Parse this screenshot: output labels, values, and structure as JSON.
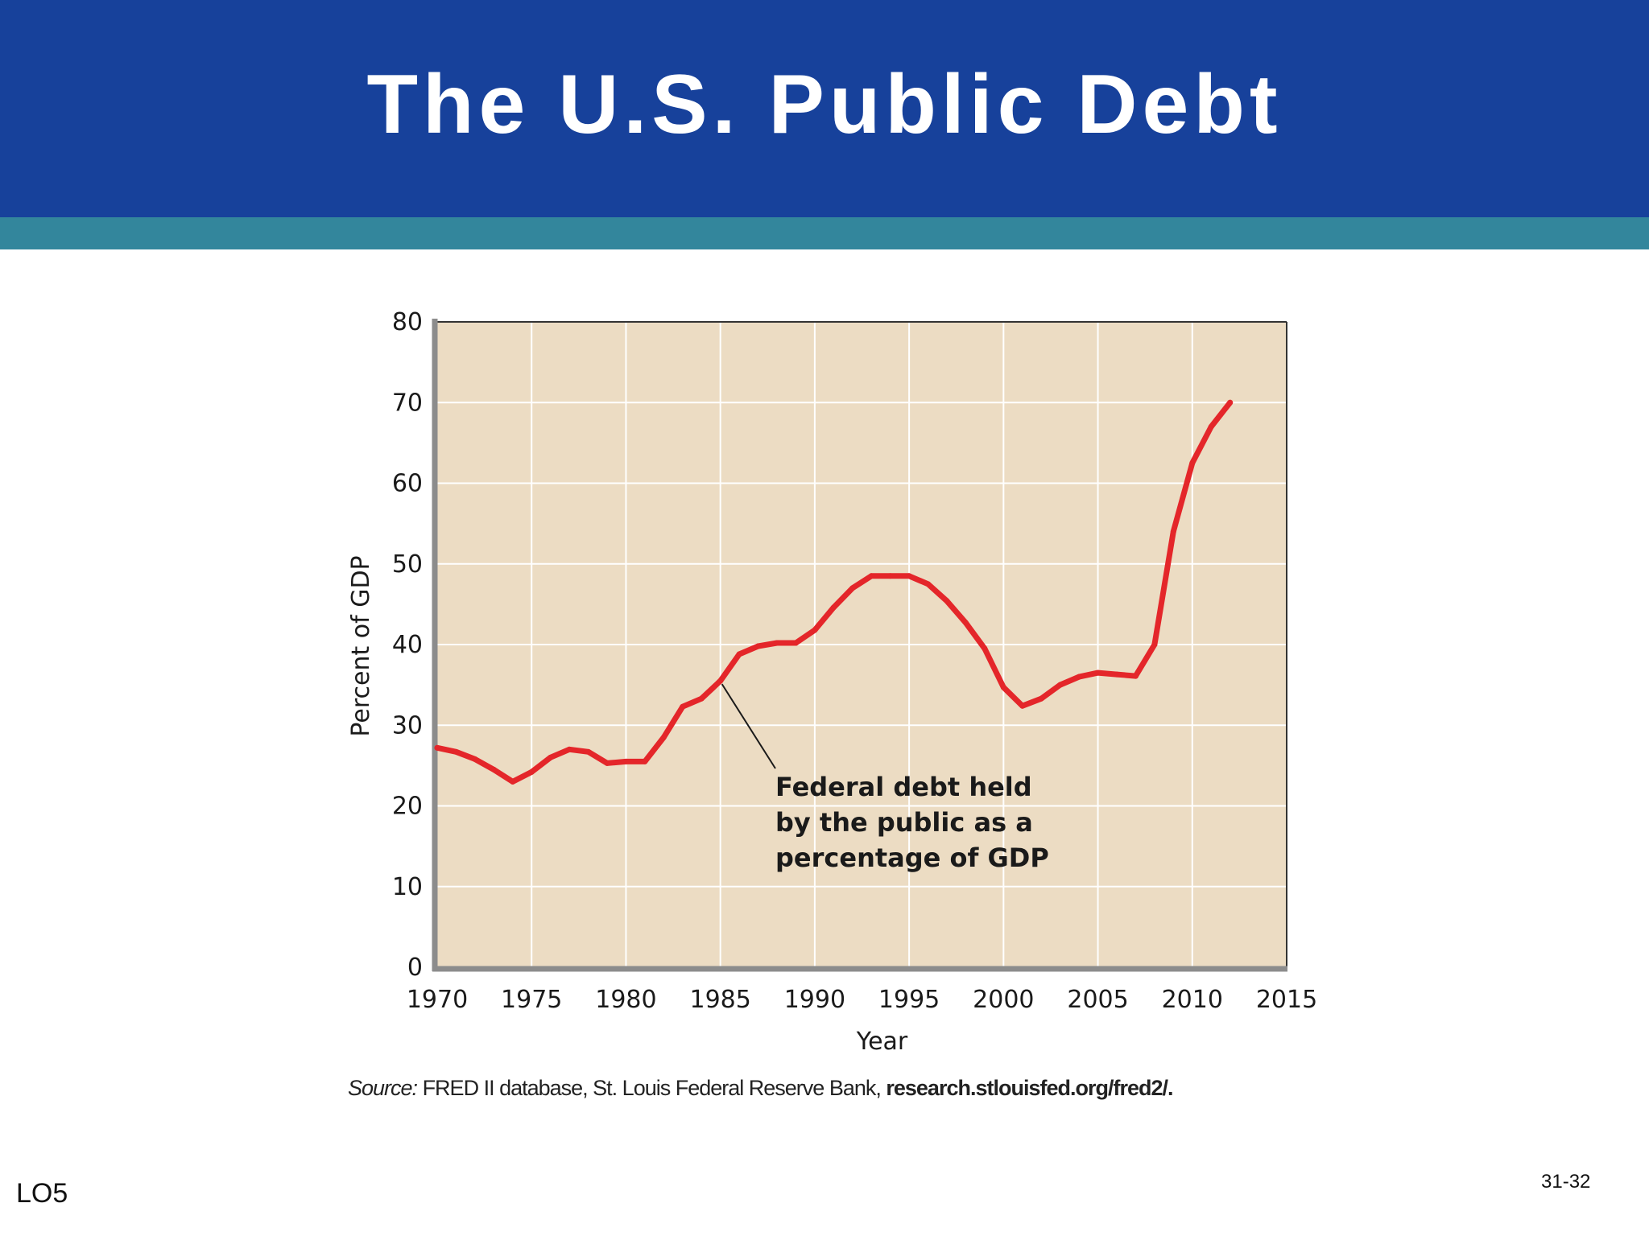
{
  "slide": {
    "title": "The U.S. Public Debt",
    "lo_tag": "LO5",
    "slide_number": "31-32",
    "source_label": "Source:",
    "source_text": " FRED II database, St. Louis Federal Reserve Bank, ",
    "source_url": "research.stlouisfed.org/fred2/."
  },
  "colors": {
    "title_bar": "#17419b",
    "accent_strip": "#33869c",
    "plot_background": "#ecdcc3",
    "series_line": "#e4262a"
  },
  "chart_data": {
    "type": "line",
    "title": "",
    "xlabel": "Year",
    "ylabel": "Percent of GDP",
    "xlim": [
      1970,
      2015
    ],
    "ylim": [
      0,
      80
    ],
    "x_ticks": [
      1970,
      1975,
      1980,
      1985,
      1990,
      1995,
      2000,
      2005,
      2010,
      2015
    ],
    "y_ticks": [
      0,
      10,
      20,
      30,
      40,
      50,
      60,
      70,
      80
    ],
    "grid": true,
    "annotation": {
      "lines": [
        "Federal debt held",
        "by the public as a",
        "percentage of GDP"
      ],
      "points_to": [
        1985,
        35.5
      ]
    },
    "series": [
      {
        "x": [
          1970,
          1971,
          1972,
          1973,
          1974,
          1975,
          1976,
          1977,
          1978,
          1979,
          1980,
          1981,
          1982,
          1983,
          1984,
          1985,
          1986,
          1987,
          1988,
          1989,
          1990,
          1991,
          1992,
          1993,
          1994,
          1995,
          1996,
          1997,
          1998,
          1999,
          2000,
          2001,
          2002,
          2003,
          2004,
          2005,
          2006,
          2007,
          2008,
          2009,
          2010,
          2011,
          2012
        ],
        "y": [
          27.2,
          26.7,
          25.8,
          24.5,
          23.0,
          24.2,
          26.0,
          27.0,
          26.7,
          25.3,
          25.5,
          25.5,
          28.5,
          32.3,
          33.3,
          35.5,
          38.8,
          39.8,
          40.2,
          40.2,
          41.8,
          44.6,
          47.0,
          48.5,
          48.5,
          48.5,
          47.5,
          45.4,
          42.7,
          39.5,
          34.7,
          32.4,
          33.3,
          35.0,
          36.0,
          36.5,
          36.3,
          36.1,
          40.0,
          54.0,
          62.5,
          67.0,
          70.0
        ]
      }
    ]
  }
}
